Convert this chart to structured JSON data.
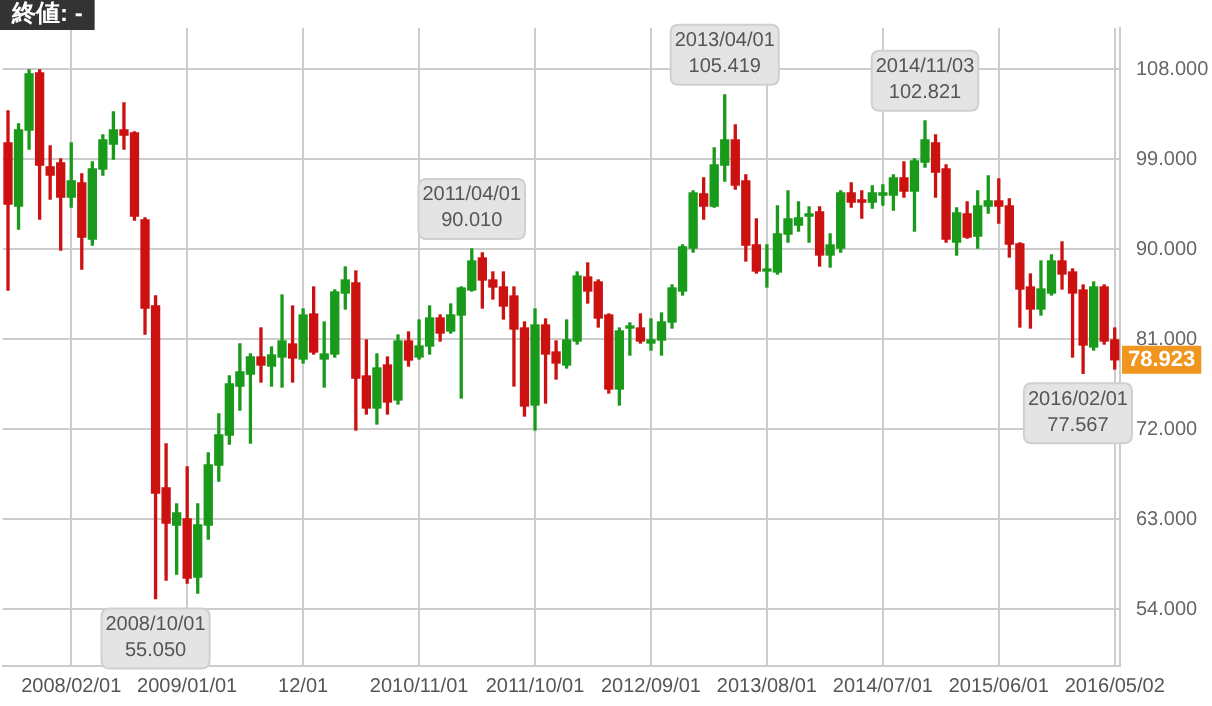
{
  "chart_data": {
    "type": "candlestick",
    "categories": [
      null,
      null,
      null,
      null,
      null,
      null,
      "2008/02/01",
      null,
      null,
      null,
      null,
      null,
      null,
      null,
      null,
      null,
      null,
      "2009/01/01",
      null,
      null,
      null,
      null,
      null,
      null,
      null,
      null,
      null,
      null,
      "12/01",
      null,
      null,
      null,
      null,
      null,
      null,
      null,
      null,
      null,
      null,
      "2010/11/01",
      null,
      null,
      null,
      null,
      null,
      null,
      null,
      null,
      null,
      null,
      "2011/10/01",
      null,
      null,
      null,
      null,
      null,
      null,
      null,
      null,
      null,
      null,
      "2012/09/01",
      null,
      null,
      null,
      null,
      null,
      null,
      null,
      null,
      null,
      null,
      "2013/08/01",
      null,
      null,
      null,
      null,
      null,
      null,
      null,
      null,
      null,
      null,
      "2014/07/01",
      null,
      null,
      null,
      null,
      null,
      null,
      null,
      null,
      null,
      null,
      "2015/06/01",
      null,
      null,
      null,
      null,
      null,
      null,
      null,
      null,
      null,
      null,
      "2016/05/02"
    ],
    "ohlc": [
      [
        100.6,
        103.8,
        85.9,
        94.5
      ],
      [
        94.3,
        102.5,
        92,
        101.9
      ],
      [
        101.9,
        107.9,
        100,
        107.5
      ],
      [
        107.6,
        107.9,
        93,
        98.4
      ],
      [
        98.2,
        100.3,
        95,
        97.4
      ],
      [
        98.6,
        99,
        89.9,
        95.2
      ],
      [
        95.2,
        100.6,
        94.2,
        96.8
      ],
      [
        96.6,
        97.5,
        88,
        91.2
      ],
      [
        91,
        98.7,
        90.4,
        98
      ],
      [
        98,
        101.4,
        97.4,
        100.9
      ],
      [
        100.5,
        103.7,
        99,
        101.9
      ],
      [
        101.9,
        104.6,
        100,
        101.4
      ],
      [
        101.6,
        101.7,
        92.9,
        93.3
      ],
      [
        92.9,
        93.1,
        81.5,
        84.1
      ],
      [
        84.3,
        85.3,
        55.05,
        65.6
      ],
      [
        66.1,
        70.5,
        56.9,
        62.6
      ],
      [
        62.4,
        64.5,
        57.5,
        63.6
      ],
      [
        63,
        68.2,
        56.6,
        57.1
      ],
      [
        57.2,
        64.5,
        55.6,
        62.4
      ],
      [
        62.4,
        69.6,
        61,
        68.4
      ],
      [
        68.4,
        73.5,
        66.8,
        71.4
      ],
      [
        71.4,
        77.3,
        70.5,
        76.5
      ],
      [
        76.3,
        80.5,
        73.9,
        77.7
      ],
      [
        77.5,
        79.5,
        70.6,
        79.2
      ],
      [
        79.2,
        82.1,
        76.7,
        78.4
      ],
      [
        78.3,
        80.2,
        76.3,
        79.4
      ],
      [
        79.2,
        85.4,
        76.2,
        80.8
      ],
      [
        80.5,
        84.3,
        76.7,
        79.1
      ],
      [
        79,
        84,
        78.6,
        83.4
      ],
      [
        83.5,
        86.2,
        79.5,
        79.7
      ],
      [
        79,
        82.7,
        76.2,
        79.5
      ],
      [
        79.5,
        85.9,
        79.2,
        85.7
      ],
      [
        85.6,
        88.2,
        84,
        86.9
      ],
      [
        86.6,
        87.8,
        71.9,
        77.1
      ],
      [
        77.3,
        80.9,
        73.5,
        74.1
      ],
      [
        74.1,
        79.5,
        72.5,
        78.1
      ],
      [
        78.4,
        79.2,
        73.5,
        74.7
      ],
      [
        74.9,
        81.4,
        74.5,
        80.8
      ],
      [
        80.8,
        81.7,
        78.3,
        78.9
      ],
      [
        79.2,
        82.9,
        79,
        80.3
      ],
      [
        80.3,
        84.3,
        79.5,
        83.1
      ],
      [
        83.1,
        83.4,
        80.8,
        81.6
      ],
      [
        81.8,
        84.5,
        81.6,
        83.4
      ],
      [
        83.4,
        86.2,
        75.1,
        86.1
      ],
      [
        85.9,
        90.01,
        85.8,
        88.8
      ],
      [
        89.1,
        89.6,
        84.1,
        86.9
      ],
      [
        86.9,
        87.7,
        85,
        86.2
      ],
      [
        86.2,
        87.7,
        83,
        84.3
      ],
      [
        85.3,
        86.2,
        76.3,
        82
      ],
      [
        82.1,
        82.7,
        73.3,
        74.3
      ],
      [
        74.4,
        84,
        71.9,
        82.4
      ],
      [
        82.4,
        83,
        74.6,
        79.5
      ],
      [
        79.7,
        80.8,
        77,
        78.6
      ],
      [
        78.4,
        82.9,
        78.1,
        80.9
      ],
      [
        80.8,
        87.7,
        80.5,
        87.3
      ],
      [
        87.2,
        88.6,
        84.6,
        85.8
      ],
      [
        86.7,
        86.9,
        82.2,
        83.1
      ],
      [
        83.4,
        83.5,
        75.6,
        76
      ],
      [
        76,
        82.1,
        74.4,
        81.8
      ],
      [
        82.1,
        82.6,
        79.4,
        82.3
      ],
      [
        82.1,
        83.5,
        80.6,
        80.8
      ],
      [
        80.6,
        83,
        79.9,
        80.9
      ],
      [
        80.9,
        83.6,
        79.4,
        82.7
      ],
      [
        82.7,
        86.4,
        82.1,
        86.1
      ],
      [
        85.8,
        90.4,
        85.4,
        90.2
      ],
      [
        90.1,
        95.8,
        89.7,
        95.6
      ],
      [
        95.5,
        97.1,
        93,
        94.3
      ],
      [
        94.3,
        100.1,
        94.2,
        98.4
      ],
      [
        98.4,
        105.419,
        96.8,
        100.9
      ],
      [
        100.9,
        102.4,
        96,
        96.4
      ],
      [
        96.8,
        97.4,
        88.8,
        90.4
      ],
      [
        90.4,
        93,
        87.6,
        87.8
      ],
      [
        87.8,
        90.4,
        86.2,
        87.9
      ],
      [
        87.7,
        94.3,
        87.5,
        91.5
      ],
      [
        91.5,
        95.8,
        90.7,
        93
      ],
      [
        92.4,
        94.7,
        91.8,
        93.1
      ],
      [
        93.3,
        94.2,
        90.7,
        93.4
      ],
      [
        93.7,
        94.2,
        88.3,
        89.4
      ],
      [
        89.4,
        91.5,
        88.2,
        90.4
      ],
      [
        90.1,
        95.8,
        89.7,
        95.6
      ],
      [
        95.6,
        96.6,
        94.2,
        94.7
      ],
      [
        94.8,
        95.8,
        93.1,
        94.7
      ],
      [
        94.7,
        96.3,
        94.1,
        95.6
      ],
      [
        95.4,
        96.4,
        94.4,
        95.6
      ],
      [
        95.4,
        97.4,
        93.9,
        97.1
      ],
      [
        97.1,
        98.7,
        95.2,
        95.8
      ],
      [
        95.8,
        99,
        91.8,
        98.8
      ],
      [
        98.7,
        102.821,
        98.2,
        100.9
      ],
      [
        100.6,
        101.4,
        95.2,
        97.7
      ],
      [
        98,
        98.4,
        90.7,
        91
      ],
      [
        90.7,
        94.1,
        89.4,
        93.6
      ],
      [
        93.5,
        94.7,
        91.1,
        91.2
      ],
      [
        91.3,
        95.8,
        90.1,
        94.3
      ],
      [
        94.3,
        97.3,
        93.6,
        94.8
      ],
      [
        94.8,
        97,
        92.6,
        94.3
      ],
      [
        94.3,
        95,
        89.2,
        90.5
      ],
      [
        90.5,
        90.6,
        82.2,
        86
      ],
      [
        86.2,
        87.5,
        82.1,
        84
      ],
      [
        84,
        88.8,
        83.4,
        86
      ],
      [
        85.6,
        89.4,
        85.4,
        88.8
      ],
      [
        88.8,
        90.7,
        86,
        87.5
      ],
      [
        87.7,
        88,
        79.2,
        85.6
      ],
      [
        85.9,
        86.4,
        77.567,
        80.4
      ],
      [
        80.2,
        86.7,
        79.9,
        86.2
      ],
      [
        86.2,
        86.4,
        80.5,
        80.8
      ],
      [
        80.9,
        82.1,
        78,
        78.923
      ]
    ],
    "colors": [
      "#cc1111",
      "#1a9a1a",
      "#1a9a1a",
      "#cc1111",
      "#cc1111",
      "#cc1111",
      "#1a9a1a",
      "#cc1111",
      "#1a9a1a",
      "#1a9a1a",
      "#1a9a1a",
      "#cc1111",
      "#cc1111",
      "#cc1111",
      "#cc1111",
      "#cc1111",
      "#1a9a1a",
      "#cc1111",
      "#1a9a1a",
      "#1a9a1a",
      "#1a9a1a",
      "#1a9a1a",
      "#1a9a1a",
      "#1a9a1a",
      "#cc1111",
      "#1a9a1a",
      "#1a9a1a",
      "#cc1111",
      "#1a9a1a",
      "#cc1111",
      "#1a9a1a",
      "#1a9a1a",
      "#1a9a1a",
      "#cc1111",
      "#cc1111",
      "#1a9a1a",
      "#cc1111",
      "#1a9a1a",
      "#cc1111",
      "#1a9a1a",
      "#1a9a1a",
      "#cc1111",
      "#1a9a1a",
      "#1a9a1a",
      "#1a9a1a",
      "#cc1111",
      "#cc1111",
      "#cc1111",
      "#cc1111",
      "#cc1111",
      "#1a9a1a",
      "#cc1111",
      "#cc1111",
      "#1a9a1a",
      "#1a9a1a",
      "#cc1111",
      "#cc1111",
      "#cc1111",
      "#1a9a1a",
      "#1a9a1a",
      "#cc1111",
      "#1a9a1a",
      "#1a9a1a",
      "#1a9a1a",
      "#1a9a1a",
      "#1a9a1a",
      "#cc1111",
      "#1a9a1a",
      "#1a9a1a",
      "#cc1111",
      "#cc1111",
      "#cc1111",
      "#1a9a1a",
      "#1a9a1a",
      "#1a9a1a",
      "#1a9a1a",
      "#1a9a1a",
      "#cc1111",
      "#1a9a1a",
      "#1a9a1a",
      "#cc1111",
      "#cc1111",
      "#1a9a1a",
      "#1a9a1a",
      "#1a9a1a",
      "#cc1111",
      "#1a9a1a",
      "#1a9a1a",
      "#cc1111",
      "#cc1111",
      "#1a9a1a",
      "#cc1111",
      "#1a9a1a",
      "#1a9a1a",
      "#cc1111",
      "#cc1111",
      "#cc1111",
      "#cc1111",
      "#1a9a1a",
      "#1a9a1a",
      "#cc1111",
      "#cc1111",
      "#cc1111",
      "#1a9a1a",
      "#cc1111",
      "#cc1111"
    ],
    "ylim": [
      48.3,
      112.1
    ],
    "yticks": [
      {
        "value": 54,
        "label": "54.000"
      },
      {
        "value": 63,
        "label": "63.000"
      },
      {
        "value": 72,
        "label": "72.000"
      },
      {
        "value": 81,
        "label": "81.000"
      },
      {
        "value": 90,
        "label": "90.000"
      },
      {
        "value": 99,
        "label": "99.000"
      },
      {
        "value": 108,
        "label": "108.000"
      }
    ],
    "grid": true,
    "annotations": [
      "終値: -",
      {
        "text": "2008/10/01\n55.050",
        "y": 55.05
      },
      {
        "text": "2011/04/01\n90.010",
        "y": 90.01
      },
      {
        "text": "2013/04/01\n105.419",
        "y": 105.419
      },
      {
        "text": "2014/11/03\n102.821",
        "y": 102.821
      },
      {
        "text": "2016/02/01\n77.567",
        "y": 77.567
      },
      {
        "text": "78.923",
        "x": "2016/05/02",
        "y": 78.923
      }
    ]
  }
}
